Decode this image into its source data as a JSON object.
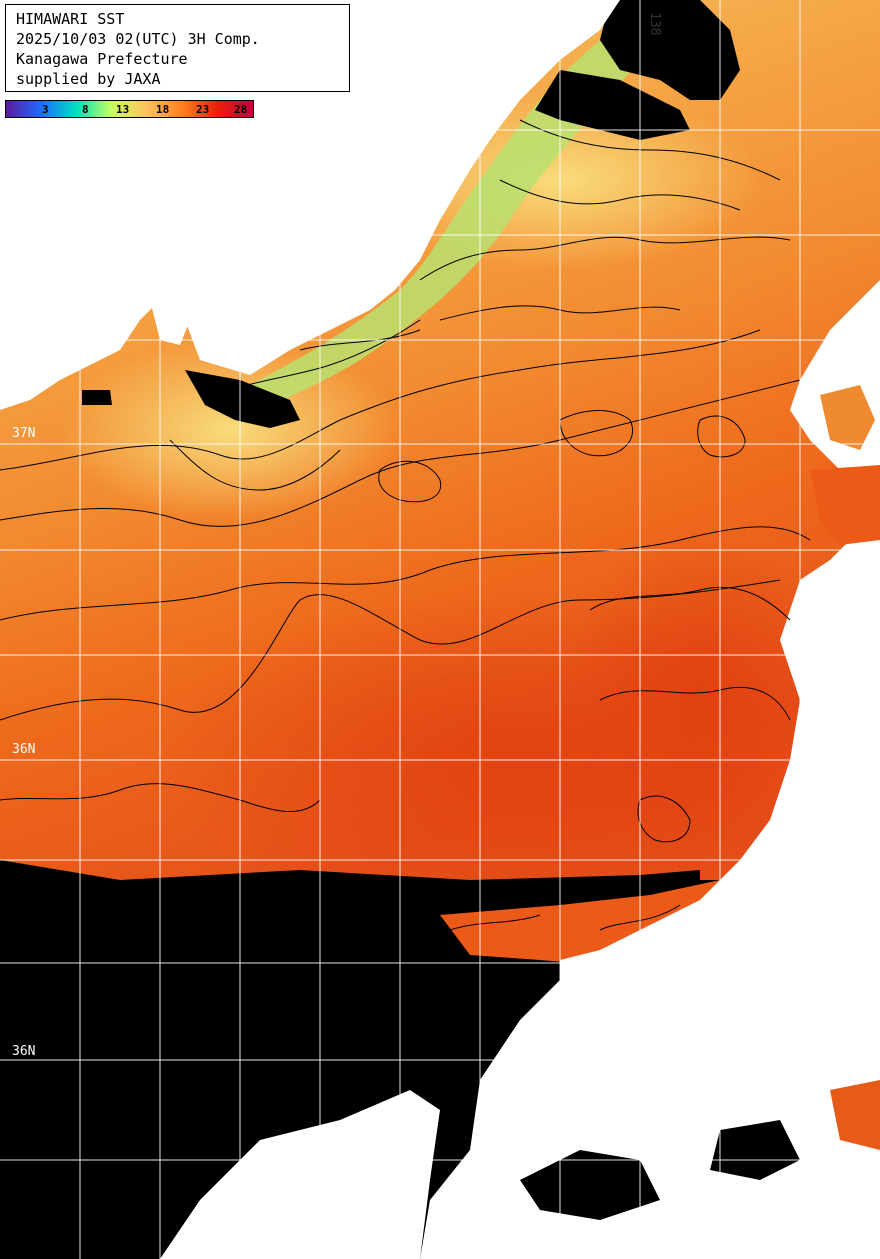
{
  "header": {
    "line1": "HIMAWARI SST",
    "line2": "2025/10/03 02(UTC) 3H Comp.",
    "line3": "Kanagawa Prefecture",
    "line4": "supplied by JAXA"
  },
  "colorbar": {
    "ticks": [
      "3",
      "8",
      "13",
      "18",
      "23",
      "28"
    ],
    "colors": [
      "#5a1a9a",
      "#1e6cff",
      "#00e0c0",
      "#c8ff60",
      "#ffc060",
      "#ff8020",
      "#e8200a",
      "#c00040"
    ]
  },
  "grid": {
    "lat_labels": [
      "37N",
      "36N",
      "36N"
    ],
    "lon_labels": [
      "138"
    ]
  },
  "contours": [
    "18",
    "19",
    "20",
    "21",
    "22",
    "23",
    "24"
  ],
  "colors": {
    "land": "#ffffff",
    "cloud": "#000000",
    "sst_cool": "#f2d070",
    "sst_mid": "#f5a040",
    "sst_warm": "#f07020",
    "sst_hot": "#e04a10",
    "coastal_green": "#a8e070"
  }
}
